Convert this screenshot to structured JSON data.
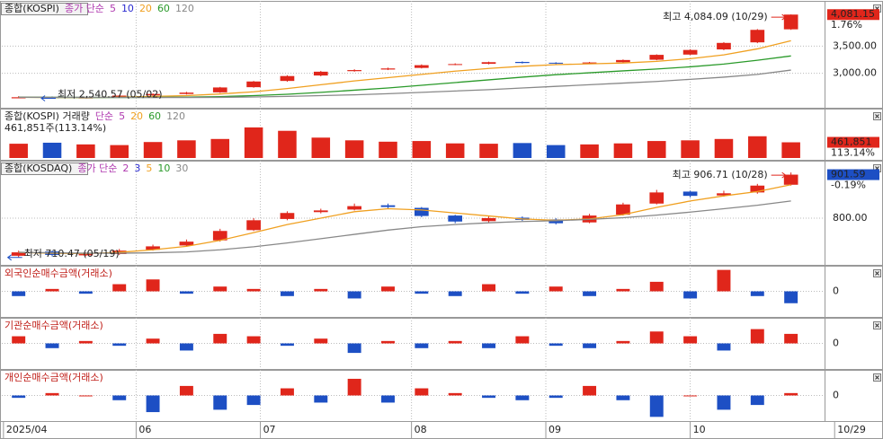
{
  "chart_data": [
    {
      "type": "candlestick",
      "title": "종합(KOSPI)",
      "legend_label": "종가 단순",
      "open": [
        2540,
        2565,
        2545,
        2560,
        2595,
        2620,
        2650,
        2745,
        2860,
        2960,
        3040,
        3070,
        3100,
        3160,
        3175,
        3210,
        3195,
        3185,
        3205,
        3250,
        3345,
        3440,
        3570,
        3810
      ],
      "high": [
        2580,
        2575,
        2570,
        2600,
        2630,
        2660,
        2750,
        2860,
        2965,
        3045,
        3075,
        3105,
        3165,
        3185,
        3215,
        3220,
        3205,
        3210,
        3255,
        3350,
        3445,
        3575,
        3815,
        4084.09
      ],
      "low": [
        2545,
        2540.57,
        2542,
        2555,
        2585,
        2610,
        2640,
        2735,
        2845,
        2945,
        3030,
        3060,
        3090,
        3150,
        3165,
        3180,
        3170,
        3175,
        3195,
        3240,
        3335,
        3425,
        3555,
        3800
      ],
      "close": [
        2560,
        2545,
        2555,
        2590,
        2620,
        2645,
        2740,
        2850,
        2950,
        3030,
        3060,
        3090,
        3150,
        3170,
        3205,
        3190,
        3180,
        3200,
        3245,
        3340,
        3430,
        3560,
        3800,
        4081.15
      ],
      "up_color": "#e0261b",
      "down_color": "#1d4fc4",
      "series": [
        {
          "name": "5",
          "color": "#b03ab0"
        },
        {
          "name": "10",
          "color": "#2a2ad0"
        },
        {
          "name": "20",
          "color": "#f0a020",
          "values": [
            2560,
            2555,
            2553,
            2560,
            2575,
            2590,
            2620,
            2660,
            2720,
            2790,
            2860,
            2920,
            2980,
            3040,
            3090,
            3130,
            3160,
            3175,
            3190,
            3220,
            3270,
            3340,
            3450,
            3600
          ]
        },
        {
          "name": "60",
          "color": "#2a9a2a",
          "values": [
            2560,
            2558,
            2556,
            2556,
            2558,
            2562,
            2572,
            2590,
            2615,
            2650,
            2690,
            2730,
            2780,
            2830,
            2880,
            2930,
            2975,
            3010,
            3045,
            3080,
            3120,
            3170,
            3240,
            3320
          ]
        },
        {
          "name": "120",
          "color": "#888888",
          "values": [
            2560,
            2559,
            2558,
            2557,
            2556,
            2556,
            2558,
            2565,
            2575,
            2590,
            2605,
            2625,
            2650,
            2675,
            2700,
            2730,
            2760,
            2790,
            2820,
            2850,
            2890,
            2930,
            2980,
            3060
          ]
        }
      ],
      "annotations": {
        "high": "최고 4,084.09 (10/29)",
        "low": "최저 2,540.57 (05/02)"
      },
      "last_label": "4,081.15",
      "change_label": "1.76%",
      "last_color": "#e0261b",
      "ylim": [
        2400,
        4300
      ],
      "yticks": [
        {
          "value": 3500,
          "label": "3,500.00"
        },
        {
          "value": 3000,
          "label": "3,000.00"
        }
      ]
    },
    {
      "type": "bar",
      "title": "종합(KOSPI) 거래량",
      "legend_label": "단순",
      "series": [
        {
          "name": "5",
          "color": "#b03ab0"
        },
        {
          "name": "20",
          "color": "#f0a020"
        },
        {
          "name": "60",
          "color": "#2a9a2a"
        },
        {
          "name": "120",
          "color": "#888888"
        }
      ],
      "subtitle": "461,851주(113.14%)",
      "values": [
        420000,
        450000,
        400000,
        380000,
        470000,
        520000,
        560000,
        900000,
        800000,
        600000,
        520000,
        480000,
        500000,
        430000,
        420000,
        440000,
        380000,
        400000,
        430000,
        500000,
        520000,
        560000,
        640000,
        461851
      ],
      "last_label": "461,851",
      "change_label": "113.14%",
      "last_color": "#e0261b",
      "ylim": [
        0,
        1400000
      ],
      "yticks": []
    },
    {
      "type": "candlestick",
      "title": "종합(KOSDAQ)",
      "legend_label": "종가 단순",
      "open": [
        712,
        722,
        713,
        716,
        726,
        736,
        748,
        772,
        798,
        814,
        820,
        830,
        824,
        806,
        793,
        801,
        797,
        790,
        808,
        834,
        862,
        853,
        860,
        878
      ],
      "high": [
        724,
        724,
        720,
        728,
        738,
        750,
        775,
        800,
        816,
        822,
        834,
        834,
        826,
        808,
        804,
        804,
        800,
        810,
        836,
        866,
        864,
        864,
        880,
        906.71
      ],
      "low": [
        708,
        710.47,
        711,
        714,
        724,
        733,
        745,
        770,
        795,
        811,
        818,
        822,
        802,
        788,
        790,
        793,
        785,
        788,
        806,
        832,
        848,
        850,
        857,
        876
      ],
      "close": [
        720,
        714,
        716,
        724,
        734,
        745,
        770,
        795,
        812,
        818,
        828,
        826,
        805,
        792,
        800,
        796,
        788,
        806,
        832,
        860,
        852,
        858,
        876,
        901.59
      ],
      "up_color": "#e0261b",
      "down_color": "#1d4fc4",
      "series": [
        {
          "name": "2",
          "color": "#b03ab0"
        },
        {
          "name": "3",
          "color": "#2a2ad0"
        },
        {
          "name": "5",
          "color": "#f0a020",
          "values": [
            720,
            718,
            717,
            720,
            726,
            734,
            748,
            766,
            785,
            800,
            815,
            822,
            819,
            812,
            805,
            798,
            795,
            798,
            808,
            825,
            840,
            852,
            862,
            878
          ]
        },
        {
          "name": "10",
          "color": "#2a9a2a"
        },
        {
          "name": "30",
          "color": "#888888",
          "values": [
            720,
            719,
            718,
            718,
            719,
            721,
            726,
            733,
            742,
            752,
            762,
            772,
            780,
            785,
            789,
            792,
            794,
            797,
            801,
            807,
            814,
            822,
            830,
            840
          ]
        }
      ],
      "annotations": {
        "high": "최고 906.71 (10/28)",
        "low": "최저 710.47 (05/19)"
      },
      "last_label": "901.59",
      "change_label": "-0.19%",
      "last_color": "#1d4fc4",
      "ylim": [
        695,
        930
      ],
      "yticks": [
        {
          "value": 800,
          "label": "800.00"
        }
      ]
    },
    {
      "type": "diverging_bar",
      "title": "외국인순매수금액(거래소)",
      "pos_color": "#e0261b",
      "neg_color": "#1d4fc4",
      "values": [
        -2,
        1,
        -1,
        3,
        5,
        -1,
        2,
        1,
        -2,
        1,
        -3,
        2,
        -1,
        -2,
        3,
        -1,
        2,
        -2,
        1,
        4,
        -3,
        9,
        -2,
        -5
      ],
      "ylim": [
        -10,
        10
      ],
      "yticks": [
        0
      ]
    },
    {
      "type": "diverging_bar",
      "title": "기관순매수금액(거래소)",
      "pos_color": "#e0261b",
      "neg_color": "#1d4fc4",
      "values": [
        3,
        -2,
        1,
        -1,
        2,
        -3,
        4,
        3,
        -1,
        2,
        -4,
        1,
        -2,
        1,
        -2,
        3,
        -1,
        -2,
        1,
        5,
        3,
        -3,
        6,
        4
      ],
      "ylim": [
        -10,
        10
      ],
      "yticks": [
        0
      ]
    },
    {
      "type": "diverging_bar",
      "title": "개인순매수금액(거래소)",
      "pos_color": "#e0261b",
      "neg_color": "#1d4fc4",
      "values": [
        -1,
        1,
        0,
        -2,
        -7,
        4,
        -6,
        -4,
        3,
        -3,
        7,
        -3,
        3,
        1,
        -1,
        -2,
        -1,
        4,
        -2,
        -9,
        0,
        -6,
        -4,
        1
      ],
      "ylim": [
        -10,
        10
      ],
      "yticks": [
        0
      ]
    }
  ],
  "x_axis": {
    "xlim": [
      -0.5,
      24
    ],
    "xticks": [
      {
        "value": -0.45,
        "label": "2025/04"
      },
      {
        "value": 3.5,
        "label": "06"
      },
      {
        "value": 7.2,
        "label": "07"
      },
      {
        "value": 11.7,
        "label": "08"
      },
      {
        "value": 15.7,
        "label": "09"
      },
      {
        "value": 20,
        "label": "10"
      },
      {
        "value": 24.3,
        "label": "10/29"
      }
    ]
  }
}
